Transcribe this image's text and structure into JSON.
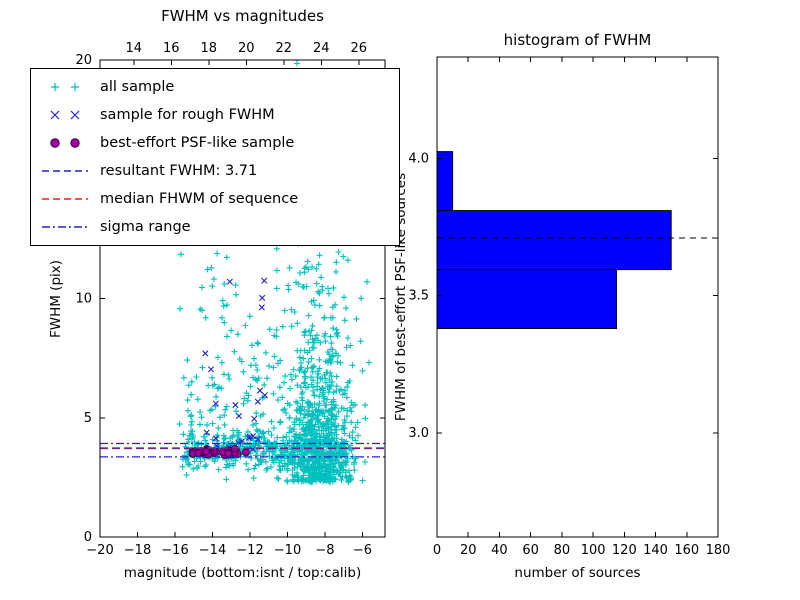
{
  "figure": {
    "background": "#ffffff"
  },
  "left_plot": {
    "title": "FWHM vs magnitudes",
    "xlabel": "magnitude (bottom:isnt / top:calib)",
    "ylabel": "FWHM (pix)"
  },
  "right_plot": {
    "title": "histogram of FWHM",
    "xlabel": "number of sources",
    "ylabel": "FWHM of best-effort PSF-like sources"
  },
  "legend": {
    "items": [
      {
        "label": "all sample",
        "glyph": "plus",
        "color": "#00bfbf"
      },
      {
        "label": "sample for rough FWHM",
        "glyph": "x",
        "color": "#2424cf"
      },
      {
        "label": "best-effort PSF-like sample",
        "glyph": "circle",
        "color": "#a000a0"
      },
      {
        "label": "resultant FWHM: 3.71",
        "glyph": "dashed",
        "color": "#2222cc"
      },
      {
        "label": "median FHWM of sequence",
        "glyph": "dashed",
        "color": "#ff1a1a"
      },
      {
        "label": "sigma range",
        "glyph": "dashdot",
        "color": "#2222cc"
      }
    ]
  },
  "chart_data": [
    {
      "type": "scatter",
      "title": "FWHM vs magnitudes",
      "xlabel": "magnitude (bottom:isnt / top:calib)",
      "ylabel": "FWHM (pix)",
      "xlim": [
        -20,
        -4.8
      ],
      "ylim": [
        0,
        20
      ],
      "xticks": [
        -20,
        -18,
        -16,
        -14,
        -12,
        -10,
        -8,
        -6
      ],
      "yticks": [
        0,
        5,
        10,
        15,
        20
      ],
      "top_axis": {
        "ticks": [
          14,
          16,
          18,
          20,
          22,
          24,
          26
        ],
        "offset": 32.2
      },
      "grid": false,
      "legend_position": "upper left",
      "seed": 42,
      "series": [
        {
          "name": "all sample",
          "marker": "plus",
          "color": "#00bfbf",
          "clusters": [
            {
              "count": 800,
              "x": {
                "d": "n",
                "a": -8.3,
                "b": 0.85,
                "min": -11.6,
                "max": -5.0
              },
              "y": {
                "d": "e",
                "a": 2.3,
                "b": 2.4,
                "max": 20
              }
            },
            {
              "count": 240,
              "x": {
                "d": "u",
                "a": -15.6,
                "b": -9.2
              },
              "y": {
                "d": "e",
                "a": 2.8,
                "b": 2.2,
                "max": 14
              }
            },
            {
              "count": 260,
              "x": {
                "d": "u",
                "a": -15.6,
                "b": -6.6
              },
              "y": {
                "d": "n",
                "a": 3.7,
                "b": 0.3
              }
            },
            {
              "count": 50,
              "x": {
                "d": "n",
                "a": -9.65,
                "b": 0.25
              },
              "y": {
                "d": "u",
                "a": 12,
                "b": 20.4,
                "max": 20
              }
            },
            {
              "count": 80,
              "x": {
                "d": "u",
                "a": -16,
                "b": -5.6
              },
              "y": {
                "d": "u",
                "a": 2.3,
                "b": 12
              }
            }
          ]
        },
        {
          "name": "sample for rough FWHM",
          "marker": "x",
          "color": "#2424cf",
          "clusters": [
            {
              "count": 22,
              "x": {
                "d": "u",
                "a": -14.6,
                "b": -10.9
              },
              "y": {
                "d": "e",
                "a": 3.5,
                "b": 1.5,
                "max": 8.8
              }
            },
            {
              "count": 4,
              "x": {
                "d": "u",
                "a": -13.1,
                "b": -11.2
              },
              "y": {
                "d": "u",
                "a": 9.5,
                "b": 12
              }
            }
          ]
        },
        {
          "name": "best-effort PSF-like sample",
          "marker": "circle",
          "color": "#a000a0",
          "edge": "#3a003a",
          "clusters": [
            {
              "count": 42,
              "x": {
                "d": "u",
                "a": -15.1,
                "b": -12.2
              },
              "y": {
                "d": "n",
                "a": 3.55,
                "b": 0.07
              }
            }
          ]
        }
      ],
      "lines": [
        {
          "name": "sigma range upper",
          "y": 3.92,
          "color": "#2222cc",
          "dash": "8,3,2,3"
        },
        {
          "name": "resultant FWHM",
          "y": 3.71,
          "color": "#2222cc",
          "dash": "8,4"
        },
        {
          "name": "median FHWM of sequence",
          "y": 3.74,
          "color": "#ff1a1a",
          "dash": "8,4"
        },
        {
          "name": "sigma range lower",
          "y": 3.36,
          "color": "#2222cc",
          "dash": "8,3,2,3"
        }
      ],
      "resultant_fwhm": 3.71
    },
    {
      "type": "bar",
      "orientation": "horizontal",
      "title": "histogram of FWHM",
      "xlabel": "number of sources",
      "ylabel": "FWHM of best-effort PSF-like sources",
      "xlim": [
        0,
        180
      ],
      "ylim": [
        2.62,
        4.37
      ],
      "xticks": [
        0,
        20,
        40,
        60,
        80,
        100,
        120,
        140,
        160,
        180
      ],
      "yticks": [
        3.0,
        3.5,
        4.0
      ],
      "bins": [
        {
          "from": 3.38,
          "to": 3.595,
          "count": 115
        },
        {
          "from": 3.595,
          "to": 3.81,
          "count": 150
        },
        {
          "from": 3.81,
          "to": 4.025,
          "count": 10
        }
      ],
      "bar_color": "#0000ff",
      "bar_edge": "#000000",
      "dashed_line": {
        "y": 3.71,
        "color": "#000000"
      }
    }
  ]
}
